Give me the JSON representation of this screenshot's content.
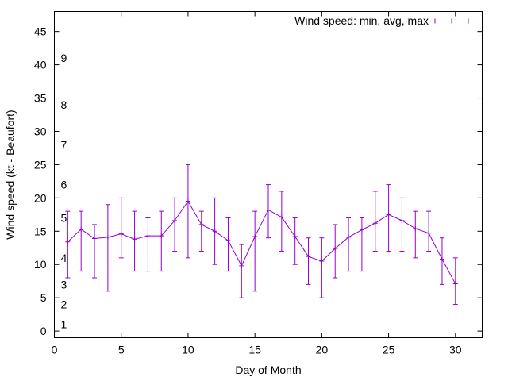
{
  "chart_data": {
    "type": "line",
    "title": "",
    "xlabel": "Day of Month",
    "ylabel": "Wind speed (kt - Beaufort)",
    "xlim": [
      0,
      32
    ],
    "ylim": [
      -1,
      48
    ],
    "xticks": [
      0,
      5,
      10,
      15,
      20,
      25,
      30
    ],
    "yticks": [
      0,
      5,
      10,
      15,
      20,
      25,
      30,
      35,
      40,
      45
    ],
    "grid": false,
    "legend_position": "top-right",
    "beaufort_labels": [
      {
        "label": "1",
        "y": 1
      },
      {
        "label": "2",
        "y": 4
      },
      {
        "label": "3",
        "y": 7
      },
      {
        "label": "4",
        "y": 11
      },
      {
        "label": "5",
        "y": 17
      },
      {
        "label": "6",
        "y": 22
      },
      {
        "label": "7",
        "y": 28
      },
      {
        "label": "8",
        "y": 34
      },
      {
        "label": "9",
        "y": 41
      }
    ],
    "series": [
      {
        "name": "Wind speed: min, avg, max",
        "color": "#9400d3",
        "x": [
          1,
          2,
          3,
          4,
          5,
          6,
          7,
          8,
          9,
          10,
          11,
          12,
          13,
          14,
          15,
          16,
          17,
          18,
          19,
          20,
          21,
          22,
          23,
          24,
          25,
          26,
          27,
          28,
          29,
          30
        ],
        "avg": [
          13.4,
          15.3,
          13.9,
          14.1,
          14.6,
          13.8,
          14.3,
          14.3,
          16.6,
          19.5,
          16.0,
          15.0,
          13.6,
          9.8,
          14.2,
          18.2,
          17.1,
          14.2,
          11.2,
          10.5,
          12.4,
          14.1,
          15.2,
          16.2,
          17.5,
          16.6,
          15.4,
          14.7,
          10.8,
          7.1
        ],
        "min": [
          8,
          9,
          8,
          6,
          11,
          9,
          9,
          9,
          12,
          11,
          12,
          10,
          9,
          5,
          6,
          14,
          12,
          10,
          7,
          5,
          8,
          9,
          9,
          12,
          12,
          12,
          11,
          12,
          7,
          4
        ],
        "max": [
          18,
          18,
          16,
          19,
          20,
          18,
          17,
          18,
          20,
          25,
          18,
          20,
          17,
          13,
          18,
          22,
          21,
          17,
          14,
          14,
          16,
          17,
          17,
          21,
          22,
          20,
          18,
          18,
          14,
          11
        ]
      }
    ]
  }
}
